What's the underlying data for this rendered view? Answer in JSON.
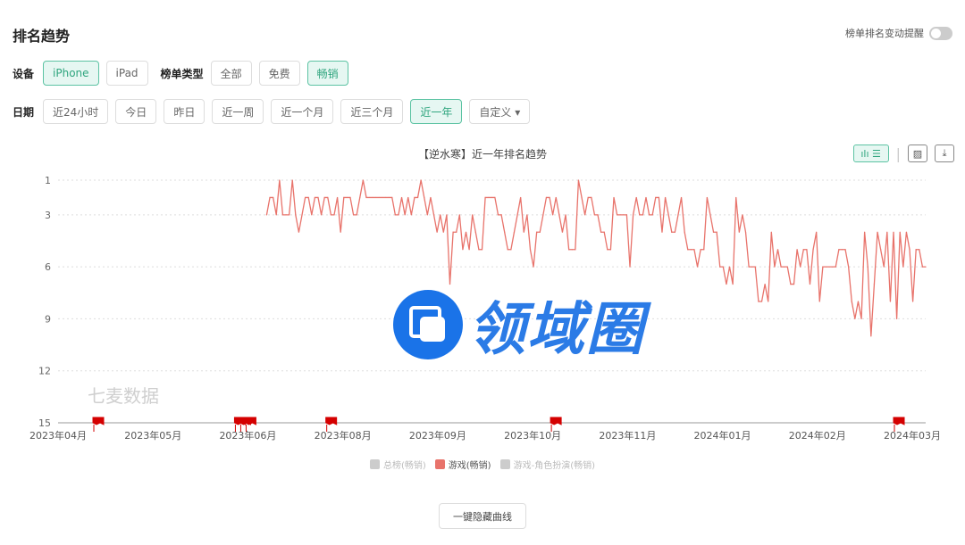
{
  "header": {
    "title": "排名趋势",
    "remind_label": "榜单排名变动提醒",
    "remind_on": false
  },
  "filters": {
    "device_label": "设备",
    "devices": [
      {
        "label": "iPhone",
        "active": true
      },
      {
        "label": "iPad",
        "active": false
      }
    ],
    "list_type_label": "榜单类型",
    "list_types": [
      {
        "label": "全部",
        "active": false
      },
      {
        "label": "免费",
        "active": false
      },
      {
        "label": "畅销",
        "active": true
      }
    ],
    "date_label": "日期",
    "dates": [
      {
        "label": "近24小时",
        "active": false
      },
      {
        "label": "今日",
        "active": false
      },
      {
        "label": "昨日",
        "active": false
      },
      {
        "label": "近一周",
        "active": false
      },
      {
        "label": "近一个月",
        "active": false
      },
      {
        "label": "近三个月",
        "active": false
      },
      {
        "label": "近一年",
        "active": true
      },
      {
        "label": "自定义 ▾",
        "active": false
      }
    ]
  },
  "toolbar": {
    "icons": [
      "bar-line-toggle-icon",
      "list-icon",
      "image-icon",
      "download-icon"
    ]
  },
  "watermark": "七麦数据",
  "logo_text": "领域圈",
  "hide_curves_label": "一键隐藏曲线",
  "chart_data": {
    "type": "line",
    "title": "【逆水寒】近一年排名趋势",
    "y_ticks": [
      1,
      3,
      6,
      9,
      12,
      15
    ],
    "ylim": [
      1,
      15
    ],
    "y_inverted": true,
    "grid": true,
    "x_ticks": [
      "2023年04月",
      "2023年05月",
      "2023年06月",
      "2023年08月",
      "2023年09月",
      "2023年10月",
      "2023年11月",
      "2024年01月",
      "2024年02月",
      "2024年03月"
    ],
    "legend_position": "bottom",
    "legend": [
      {
        "name": "总榜(畅销)",
        "active": false
      },
      {
        "name": "游戏(畅销)",
        "active": true,
        "color": "#e8736b"
      },
      {
        "name": "游戏-角色扮演(畅销)",
        "active": false
      }
    ],
    "series": [
      {
        "name": "游戏(畅销)",
        "color": "#e8736b",
        "start_tick": "2023年06月",
        "values": [
          3,
          2,
          2,
          3,
          1,
          3,
          3,
          3,
          1,
          3,
          4,
          3,
          2,
          2,
          3,
          2,
          2,
          3,
          2,
          2,
          3,
          3,
          2,
          4,
          2,
          2,
          2,
          3,
          3,
          2,
          1,
          2,
          2,
          2,
          2,
          2,
          2,
          2,
          2,
          2,
          3,
          3,
          2,
          3,
          2,
          3,
          2,
          2,
          1,
          2,
          3,
          2,
          3,
          4,
          3,
          4,
          3,
          7,
          4,
          4,
          3,
          5,
          4,
          5,
          3,
          4,
          5,
          5,
          2,
          2,
          2,
          2,
          3,
          3,
          4,
          5,
          5,
          4,
          3,
          2,
          4,
          3,
          5,
          6,
          4,
          4,
          3,
          2,
          2,
          3,
          2,
          3,
          4,
          3,
          5,
          5,
          5,
          1,
          2,
          3,
          2,
          2,
          3,
          3,
          4,
          4,
          5,
          5,
          2,
          3,
          3,
          3,
          3,
          6,
          3,
          2,
          3,
          3,
          2,
          3,
          3,
          2,
          2,
          4,
          2,
          3,
          4,
          4,
          3,
          2,
          4,
          5,
          5,
          5,
          6,
          5,
          5,
          2,
          3,
          4,
          4,
          6,
          6,
          7,
          6,
          7,
          2,
          4,
          3,
          4,
          6,
          6,
          6,
          8,
          8,
          7,
          8,
          4,
          6,
          5,
          6,
          6,
          6,
          7,
          7,
          5,
          6,
          5,
          5,
          7,
          5,
          4,
          8,
          6,
          6,
          6,
          6,
          6,
          5,
          5,
          5,
          6,
          8,
          9,
          8,
          9,
          4,
          6,
          10,
          7,
          4,
          5,
          6,
          4,
          8,
          4,
          9,
          4,
          6,
          4,
          5,
          8,
          5,
          5,
          6,
          6
        ]
      }
    ],
    "event_markers": [
      "2023年04月",
      "2023年06月",
      "2023年06月",
      "2023年06月",
      "2023年08月",
      "2023年10月",
      "2024年03月"
    ]
  }
}
